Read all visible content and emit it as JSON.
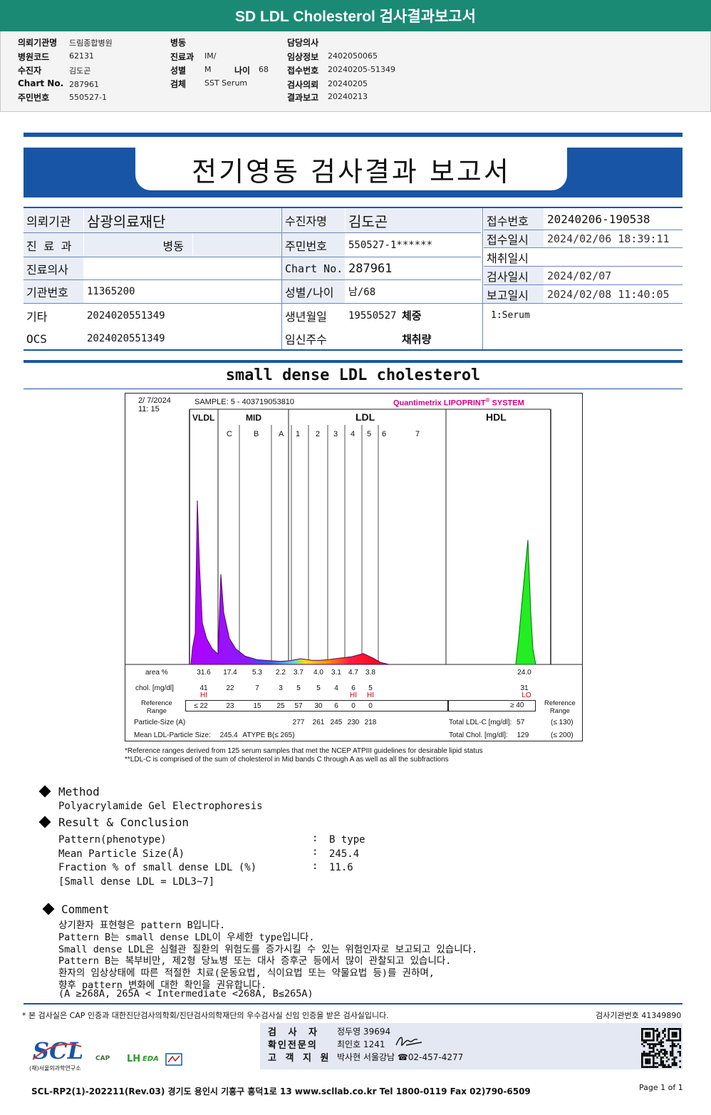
{
  "top": {
    "title": "SD LDL Cholesterol 검사결과보고서",
    "col1": [
      {
        "k": "의뢰기관명",
        "v": "드림종합병원"
      },
      {
        "k": "병원코드",
        "v": "62131"
      },
      {
        "k": "수진자",
        "v": "김도곤"
      },
      {
        "k": "Chart No.",
        "v": "287961"
      },
      {
        "k": "주민번호",
        "v": "550527-1"
      }
    ],
    "col2": [
      {
        "k": "병동",
        "v": ""
      },
      {
        "k": "진료과",
        "v": "IM/"
      },
      {
        "k": "성별",
        "v": "M"
      },
      {
        "k": "검체",
        "v": "SST Serum"
      }
    ],
    "age": {
      "k": "나이",
      "v": "68"
    },
    "col3": [
      {
        "k": "담당의사",
        "v": ""
      },
      {
        "k": "임상정보",
        "v": "2402050065"
      },
      {
        "k": "접수번호",
        "v": "20240205-51349"
      },
      {
        "k": "검사의뢰",
        "v": "20240205"
      },
      {
        "k": "결과보고",
        "v": "20240213"
      }
    ]
  },
  "report_title": "전기영동 검사결과 보고서",
  "info": {
    "inst_label": "의뢰기관",
    "inst_value": "삼광의료재단",
    "dept_label": "진 료 과",
    "dept_value": "병동",
    "doctor_label": "진료의사",
    "doctor_value": "",
    "orgno_label": "기관번호",
    "orgno_value": "11365200",
    "etc_label": "기타",
    "etc_value": "2024020551349",
    "ocs_label": "OCS",
    "ocs_value": "2024020551349",
    "patient_label": "수진자명",
    "patient_value": "김도곤",
    "rrn_label": "주민번호",
    "rrn_value": "550527-1******",
    "chart_label": "Chart No.",
    "chart_value": "287961",
    "sexage_label": "성별/나이",
    "sexage_value": "남/68",
    "birth_label": "생년월일",
    "birth_value": "19550527",
    "weight_label": "체중",
    "preg_label": "임신주수",
    "volume_label": "채취량",
    "recno_label": "접수번호",
    "recno_value": "20240206-190538",
    "recdate_label": "접수일시",
    "recdate_value": "2024/02/06 18:39:11",
    "coldate_label": "채취일시",
    "coldate_value": "",
    "testdate_label": "검사일시",
    "testdate_value": "2024/02/07",
    "repdate_label": "보고일시",
    "repdate_value": "2024/02/08 11:40:05",
    "specimen": "1:Serum"
  },
  "section_title": "small dense LDL cholesterol",
  "chart": {
    "date": "2/ 7/2024",
    "time": "11: 15",
    "sample": "SAMPLE:     5 - 403719053810",
    "brand": "Quantimetrix LIPOPRINT",
    "brand_sup": "®",
    "brand_tail": " SYSTEM",
    "groups": [
      "VLDL",
      "MID",
      "LDL",
      "HDL"
    ],
    "bands": [
      "C",
      "B",
      "A",
      "1",
      "2",
      "3",
      "4",
      "5",
      "6",
      "7"
    ],
    "area_label": "area %",
    "area": [
      "31.6",
      "17.4",
      "5.3",
      "2.2",
      "3.7",
      "4.0",
      "3.1",
      "4.7",
      "3.8",
      "24.0"
    ],
    "chol_label": "chol. [mg/dl]",
    "chol": [
      "41",
      "22",
      "7",
      "3",
      "5",
      "5",
      "4",
      "6",
      "5",
      "31"
    ],
    "flags": [
      "HI",
      "HI",
      "HI",
      "LO"
    ],
    "ref_label": [
      "Reference",
      "Range"
    ],
    "ref": [
      "≤ 22",
      "23",
      "15",
      "25",
      "57",
      "30",
      "6",
      "0",
      "0"
    ],
    "ref_hdl": "≥  40",
    "ref_right": [
      "Reference",
      "Range"
    ],
    "ps_label": "Particle-Size (A)",
    "ps": [
      "277",
      "261",
      "245",
      "230",
      "218"
    ],
    "mean_label": "Mean LDL-Particle Size:",
    "mean_value": "245.4",
    "mean_type": "ATYPE B",
    "mean_type_ref": "(≤ 265)",
    "total_ldl_label": "Total LDL-C [mg/dl]:",
    "total_ldl": "57",
    "total_ldl_ref": "(≤ 130)",
    "total_chol_label": "Total Chol. [mg/dl]:",
    "total_chol": "129",
    "total_chol_ref": "(≤ 200)"
  },
  "chart_data": {
    "type": "area",
    "title": "small dense LDL cholesterol",
    "categories": [
      "VLDL",
      "C",
      "B",
      "A",
      "1",
      "2",
      "3",
      "4",
      "5",
      "6",
      "7",
      "HDL"
    ],
    "series": [
      {
        "values": [
          31.6,
          17.4,
          5.3,
          2.2,
          3.7,
          4.0,
          3.1,
          4.7,
          3.8,
          0,
          0,
          24.0
        ]
      }
    ],
    "chol_mg_dl": [
      41,
      22,
      7,
      3,
      5,
      5,
      4,
      6,
      5,
      0,
      0,
      31
    ],
    "xlabel": "",
    "ylabel": "",
    "grid": false
  },
  "footnotes": [
    "*Reference ranges derived from 125 serum samples that met the NCEP ATPIII guidelines for desirable lipid status",
    "**LDL-C is comprised of the sum of cholesterol in Mid bands C through A as well as all the subfractions"
  ],
  "method": {
    "title": "Method",
    "text": "Polyacrylamide Gel Electrophoresis"
  },
  "result": {
    "title": "Result & Conclusion",
    "rows": [
      {
        "k": "Pattern(phenotype)",
        "v": "B type"
      },
      {
        "k": "Mean Particle Size(Å)",
        "v": "245.4"
      },
      {
        "k": "Fraction % of small dense LDL (%)",
        "v": "11.6"
      }
    ],
    "note": "[Small dense LDL = LDL3~7]",
    "sep": ":"
  },
  "comment": {
    "title": "Comment",
    "lines": [
      "상기환자 표현형은 pattern B입니다.",
      "Pattern B는 small dense LDL이 우세한 type입니다.",
      "Small dense LDL은 심혈관 질환의 위험도를 증가시킬 수 있는 위험인자로 보고되고 있습니다.",
      "Pattern B는 복부비만, 제2형 당뇨병 또는 대사 증후군 등에서 많이 관찰되고 있습니다.",
      "환자의 임상상태에 따른 적절한 치료(운동요법, 식이요법 또는 약물요법 등)를 권하며,",
      "향후 pattern 변화에 대한 확인을 권유합니다.",
      "(A ≥268A, 265A < Intermediate <268A, B≤265A)"
    ]
  },
  "footer": {
    "cert": "* 본 검사실은 CAP 인증과 대한진단검사의학회/진단검사의학재단의 우수검사실 신임 인증을 받은 검사실입니다.",
    "org_no": "검사기관번호  41349890",
    "examiner_label": "검 사 자",
    "examiner": "정두영 39694",
    "confirm_label": "확인전문의",
    "confirm": "최인호 1241",
    "cs_label": "고 객 지 원",
    "cs": "박사현 서울강남 ☎02-457-4277",
    "logo": "SCL",
    "logo_sub": "(재)서울의과학연구소",
    "badges": [
      "CAP",
      "LH",
      "EDA"
    ],
    "bottom": "SCL-RP2(1)-202211(Rev.03)  경기도 용인시 기흥구 흥덕1로 13  www.scllab.co.kr  Tel 1800-0119  Fax 02)790-6509",
    "page": "Page 1 of 1"
  }
}
